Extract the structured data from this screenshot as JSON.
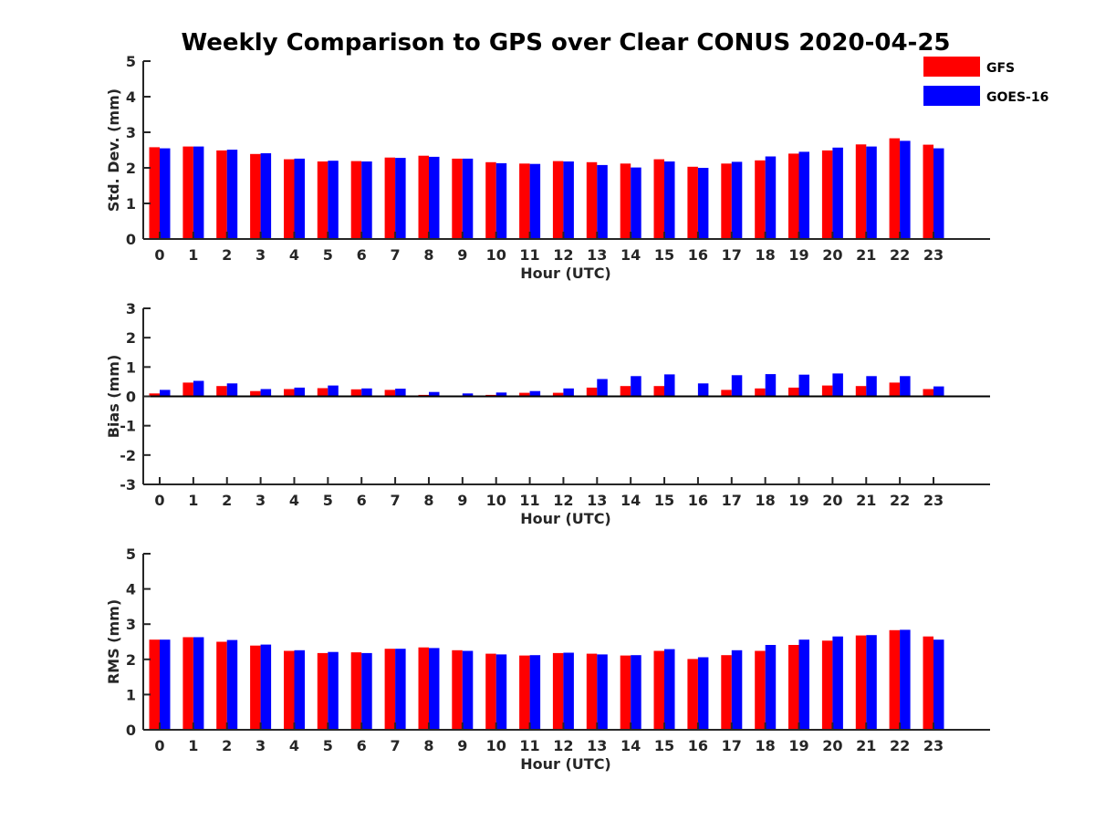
{
  "title": "Weekly Comparison to GPS over Clear CONUS 2020-04-25",
  "legend": {
    "placement": "top-right",
    "entries": [
      {
        "name": "GFS",
        "color": "#ff0000"
      },
      {
        "name": "GOES-16",
        "color": "#0000ff"
      }
    ]
  },
  "chart_data": [
    {
      "type": "bar",
      "xlabel": "Hour (UTC)",
      "ylabel": "Std. Dev. (mm)",
      "ylim": [
        0,
        5
      ],
      "yticks": [
        "0",
        "1",
        "2",
        "3",
        "4",
        "5"
      ],
      "categories": [
        "0",
        "1",
        "2",
        "3",
        "4",
        "5",
        "6",
        "7",
        "8",
        "9",
        "10",
        "11",
        "12",
        "13",
        "14",
        "15",
        "16",
        "17",
        "18",
        "19",
        "20",
        "21",
        "22",
        "23"
      ],
      "series": [
        {
          "name": "GFS",
          "color": "#ff0000",
          "values": [
            2.58,
            2.6,
            2.49,
            2.39,
            2.24,
            2.18,
            2.19,
            2.29,
            2.34,
            2.26,
            2.16,
            2.12,
            2.19,
            2.16,
            2.12,
            2.24,
            2.03,
            2.12,
            2.21,
            2.4,
            2.49,
            2.66,
            2.83,
            2.65
          ]
        },
        {
          "name": "GOES-16",
          "color": "#0000ff",
          "values": [
            2.55,
            2.6,
            2.51,
            2.41,
            2.26,
            2.2,
            2.18,
            2.28,
            2.31,
            2.26,
            2.13,
            2.11,
            2.18,
            2.08,
            2.01,
            2.18,
            2.0,
            2.17,
            2.32,
            2.45,
            2.57,
            2.6,
            2.76,
            2.55
          ]
        }
      ]
    },
    {
      "type": "bar",
      "xlabel": "Hour (UTC)",
      "ylabel": "Bias (mm)",
      "ylim": [
        -3,
        3
      ],
      "yticks": [
        "-3",
        "-2",
        "-1",
        "0",
        "1",
        "2",
        "3"
      ],
      "categories": [
        "0",
        "1",
        "2",
        "3",
        "4",
        "5",
        "6",
        "7",
        "8",
        "9",
        "10",
        "11",
        "12",
        "13",
        "14",
        "15",
        "16",
        "17",
        "18",
        "19",
        "20",
        "21",
        "22",
        "23"
      ],
      "series": [
        {
          "name": "GFS",
          "color": "#ff0000",
          "values": [
            0.1,
            0.47,
            0.35,
            0.18,
            0.25,
            0.28,
            0.24,
            0.22,
            0.05,
            0.03,
            0.05,
            0.12,
            0.12,
            0.3,
            0.35,
            0.35,
            0.0,
            0.22,
            0.27,
            0.3,
            0.37,
            0.35,
            0.47,
            0.25
          ]
        },
        {
          "name": "GOES-16",
          "color": "#0000ff",
          "values": [
            0.22,
            0.53,
            0.44,
            0.25,
            0.3,
            0.37,
            0.27,
            0.26,
            0.15,
            0.1,
            0.13,
            0.18,
            0.27,
            0.59,
            0.69,
            0.75,
            0.44,
            0.72,
            0.76,
            0.74,
            0.78,
            0.69,
            0.69,
            0.34
          ]
        }
      ]
    },
    {
      "type": "bar",
      "xlabel": "Hour (UTC)",
      "ylabel": "RMS (mm)",
      "ylim": [
        0,
        5
      ],
      "yticks": [
        "0",
        "1",
        "2",
        "3",
        "4",
        "5"
      ],
      "categories": [
        "0",
        "1",
        "2",
        "3",
        "4",
        "5",
        "6",
        "7",
        "8",
        "9",
        "10",
        "11",
        "12",
        "13",
        "14",
        "15",
        "16",
        "17",
        "18",
        "19",
        "20",
        "21",
        "22",
        "23"
      ],
      "series": [
        {
          "name": "GFS",
          "color": "#ff0000",
          "values": [
            2.56,
            2.63,
            2.5,
            2.39,
            2.24,
            2.18,
            2.2,
            2.3,
            2.34,
            2.26,
            2.16,
            2.11,
            2.18,
            2.16,
            2.11,
            2.24,
            2.01,
            2.12,
            2.24,
            2.41,
            2.53,
            2.68,
            2.83,
            2.65
          ]
        },
        {
          "name": "GOES-16",
          "color": "#0000ff",
          "values": [
            2.56,
            2.63,
            2.55,
            2.42,
            2.26,
            2.21,
            2.18,
            2.3,
            2.32,
            2.24,
            2.14,
            2.12,
            2.19,
            2.14,
            2.12,
            2.29,
            2.06,
            2.26,
            2.41,
            2.56,
            2.65,
            2.69,
            2.84,
            2.56
          ]
        }
      ]
    }
  ]
}
